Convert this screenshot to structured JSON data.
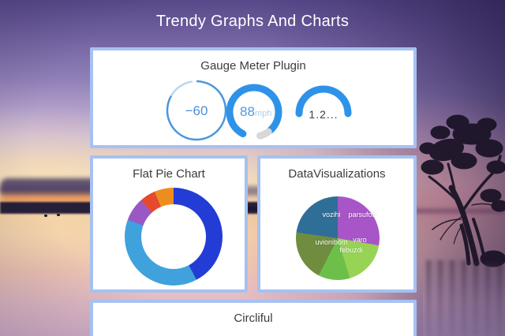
{
  "title": "Trendy Graphs And Charts",
  "panels": {
    "gauges": {
      "title": "Gauge Meter Plugin"
    },
    "flat_pie": {
      "title": "Flat Pie Chart"
    },
    "dataviz": {
      "title": "DataVisualizations"
    },
    "circliful": {
      "title": "Circliful"
    }
  },
  "chart_data": [
    {
      "id": "gauge-meter",
      "type": "gauge",
      "title": "Gauge Meter Plugin",
      "gauges": [
        {
          "label": "−60",
          "unit": "",
          "r": 37,
          "value_color": "#4a90d8",
          "arcs": [
            {
              "from": 0,
              "to": 300,
              "color": "#4a97dc",
              "width": 2.5,
              "cap": "butt"
            },
            {
              "from": 300,
              "to": 352,
              "color": "#b9d7f0",
              "width": 2.5,
              "cap": "butt"
            }
          ]
        },
        {
          "label": "88",
          "unit": "mph",
          "r": 31,
          "value_color": "#4a9ce0",
          "unit_color": "#a8cfef",
          "arcs": [
            {
              "from": 207,
              "to": 497,
              "color": "#2e93e8",
              "width": 9,
              "cap": "round"
            },
            {
              "from": 144,
              "to": 166,
              "color": "#d8d8d8",
              "width": 9,
              "cap": "round"
            }
          ]
        },
        {
          "label": "1.2...",
          "unit": "",
          "r": 31,
          "value_color": "#3d3d3d",
          "arcs": [
            {
              "from": 270,
              "to": 450,
              "color": "#2e93e8",
              "width": 9,
              "cap": "round"
            }
          ]
        }
      ]
    },
    {
      "id": "flat-pie",
      "type": "donut",
      "title": "Flat Pie Chart",
      "legend_position": "none",
      "segments": [
        {
          "label": "dark-blue",
          "color": "#233cd6",
          "from_deg": 0,
          "to_deg": 152,
          "value_pct": 42.2
        },
        {
          "label": "light-blue",
          "color": "#3fa2dc",
          "from_deg": 152,
          "to_deg": 290,
          "value_pct": 38.3
        },
        {
          "label": "purple",
          "color": "#9a58c5",
          "from_deg": 290,
          "to_deg": 318,
          "value_pct": 7.8
        },
        {
          "label": "red",
          "color": "#e6492e",
          "from_deg": 318,
          "to_deg": 337,
          "value_pct": 5.3
        },
        {
          "label": "orange",
          "color": "#ee8d1f",
          "from_deg": 337,
          "to_deg": 360,
          "value_pct": 6.4
        }
      ]
    },
    {
      "id": "dataviz-pie",
      "type": "pie",
      "title": "DataVisualizations",
      "legend_position": "inside-labels",
      "segments": [
        {
          "label": "parsufob",
          "color": "#a855c8",
          "from_deg": 0,
          "to_deg": 100,
          "value_pct": 27.8
        },
        {
          "label": "varo",
          "color": "#97d455",
          "from_deg": 100,
          "to_deg": 163,
          "value_pct": 17.5
        },
        {
          "label": "febuzdi",
          "color": "#6cc04a",
          "from_deg": 163,
          "to_deg": 207,
          "value_pct": 12.2
        },
        {
          "label": "uvionibom",
          "color": "#708c3f",
          "from_deg": 207,
          "to_deg": 278,
          "value_pct": 19.7
        },
        {
          "label": "vozihi",
          "color": "#2f6e96",
          "from_deg": 278,
          "to_deg": 360,
          "value_pct": 22.8
        }
      ]
    }
  ],
  "colors": {
    "panel_border": "#a6c1f1",
    "panel_bg": "#ffffff",
    "page_title_text": "#ffffff",
    "panel_title_text": "#3c3c3c",
    "gauge_blue": "#2e93e8"
  }
}
